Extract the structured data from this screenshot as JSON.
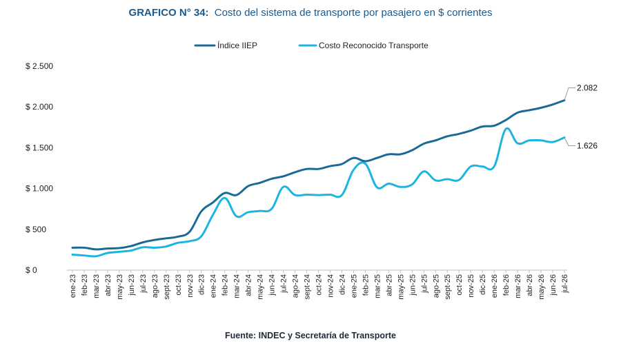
{
  "chart_data": {
    "type": "line",
    "title_bold": "GRAFICO N° 34:",
    "title_rest": "Costo del sistema de transporte por pasajero en $ corrientes",
    "source": "Fuente: INDEC y Secretaría de Transporte",
    "ylim": [
      0,
      2500
    ],
    "yticks": [
      0,
      500,
      1000,
      1500,
      2000,
      2500
    ],
    "ytick_labels": [
      "$ 0",
      "$ 500",
      "$ 1.000",
      "$ 1.500",
      "$ 2.000",
      "$ 2.500"
    ],
    "grid": false,
    "legend_position": "top-center",
    "categories": [
      "ene-23",
      "feb-23",
      "mar-23",
      "abr-23",
      "may-23",
      "jun-23",
      "jul-23",
      "ago-23",
      "sept-23",
      "oct-23",
      "nov-23",
      "dic-23",
      "ene-24",
      "feb-24",
      "mar-24",
      "abr-24",
      "may-24",
      "jun-24",
      "jul-24",
      "ago-24",
      "sept-24",
      "oct-24",
      "nov-24",
      "dic-24",
      "ene-25",
      "feb-25",
      "mar-25",
      "abr-25",
      "may-25",
      "jun-25",
      "jul-25",
      "ago-25",
      "sept-25",
      "oct-25",
      "nov-25",
      "dic-25",
      "ene-26",
      "feb-26",
      "mar-26",
      "abr-26",
      "may-26",
      "jun-26",
      "jul-26"
    ],
    "series": [
      {
        "name": "Índice IIEP",
        "color": "#1b6a96",
        "values": [
          275,
          275,
          255,
          265,
          270,
          295,
          340,
          370,
          390,
          410,
          470,
          720,
          830,
          945,
          920,
          1030,
          1070,
          1120,
          1150,
          1200,
          1240,
          1240,
          1275,
          1300,
          1375,
          1335,
          1375,
          1420,
          1420,
          1470,
          1550,
          1590,
          1640,
          1670,
          1710,
          1760,
          1770,
          1840,
          1930,
          1960,
          1990,
          2030,
          2082
        ],
        "end_label": "2.082"
      },
      {
        "name": "Costo Reconocido Transporte",
        "color": "#1cb4e0",
        "values": [
          190,
          180,
          170,
          210,
          225,
          240,
          280,
          275,
          290,
          335,
          355,
          415,
          680,
          885,
          660,
          710,
          725,
          750,
          1020,
          920,
          925,
          920,
          925,
          920,
          1230,
          1305,
          1015,
          1060,
          1020,
          1050,
          1210,
          1100,
          1115,
          1105,
          1270,
          1270,
          1270,
          1730,
          1555,
          1590,
          1590,
          1570,
          1626
        ],
        "end_label": "1.626"
      }
    ]
  }
}
